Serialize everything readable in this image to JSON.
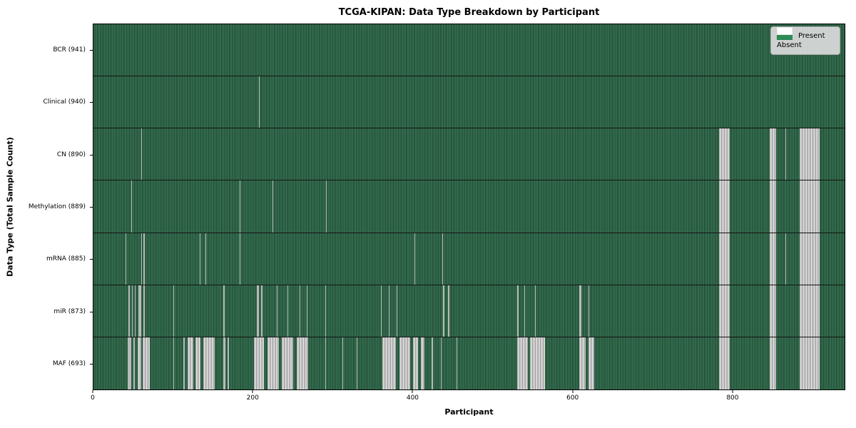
{
  "figure": {
    "title": "TCGA-KIPAN: Data Type Breakdown by Participant",
    "xlabel": "Participant",
    "ylabel": "Data Type (Total Sample Count)"
  },
  "legend": {
    "items": [
      {
        "label": "Present",
        "color": "#2e8b57"
      },
      {
        "label": "Absent",
        "color": "#ffffff"
      }
    ]
  },
  "chart_data": {
    "type": "heatmap",
    "title": "TCGA-KIPAN: Data Type Breakdown by Participant",
    "xlabel": "Participant",
    "ylabel": "Data Type (Total Sample Count)",
    "x_range": [
      0,
      941
    ],
    "x_ticks": [
      0,
      200,
      400,
      600,
      800
    ],
    "legend_position": "upper right",
    "colors": {
      "present": "#2e8b57",
      "present_stripe_dark": "#24513a",
      "absent": "#ffffff",
      "absent_rendered": "#b9b9b9",
      "row_divider": "#141414"
    },
    "rows": [
      {
        "label": "BCR (941)",
        "data_type": "BCR",
        "total_sample_count": 941,
        "absent_segments": []
      },
      {
        "label": "Clinical (940)",
        "data_type": "Clinical",
        "total_sample_count": 940,
        "absent_segments": [
          [
            207,
            208
          ]
        ]
      },
      {
        "label": "CN (890)",
        "data_type": "CN",
        "total_sample_count": 890,
        "absent_segments": [
          [
            60,
            61
          ],
          [
            784,
            797
          ],
          [
            847,
            855
          ],
          [
            867,
            868
          ],
          [
            885,
            910
          ]
        ]
      },
      {
        "label": "Methylation (889)",
        "data_type": "Methylation",
        "total_sample_count": 889,
        "absent_segments": [
          [
            47,
            48
          ],
          [
            183,
            184
          ],
          [
            224,
            225
          ],
          [
            291,
            292
          ],
          [
            784,
            797
          ],
          [
            847,
            855
          ],
          [
            885,
            910
          ]
        ]
      },
      {
        "label": "mRNA (885)",
        "data_type": "mRNA",
        "total_sample_count": 885,
        "absent_segments": [
          [
            40,
            41
          ],
          [
            60,
            61
          ],
          [
            63,
            64
          ],
          [
            133,
            134
          ],
          [
            140,
            141
          ],
          [
            183,
            184
          ],
          [
            402,
            403
          ],
          [
            437,
            438
          ],
          [
            784,
            797
          ],
          [
            847,
            855
          ],
          [
            867,
            868
          ],
          [
            885,
            910
          ]
        ]
      },
      {
        "label": "miR (873)",
        "data_type": "miR",
        "total_sample_count": 873,
        "absent_segments": [
          [
            44,
            46
          ],
          [
            48,
            49
          ],
          [
            52,
            53
          ],
          [
            56,
            60
          ],
          [
            63,
            64
          ],
          [
            100,
            101
          ],
          [
            163,
            164
          ],
          [
            205,
            207
          ],
          [
            210,
            212
          ],
          [
            230,
            231
          ],
          [
            243,
            244
          ],
          [
            258,
            259
          ],
          [
            267,
            268
          ],
          [
            290,
            291
          ],
          [
            360,
            361
          ],
          [
            370,
            371
          ],
          [
            380,
            381
          ],
          [
            438,
            440
          ],
          [
            444,
            446
          ],
          [
            531,
            533
          ],
          [
            540,
            541
          ],
          [
            553,
            554
          ],
          [
            609,
            611
          ],
          [
            620,
            621
          ],
          [
            784,
            797
          ],
          [
            847,
            855
          ],
          [
            885,
            910
          ]
        ]
      },
      {
        "label": "MAF (693)",
        "data_type": "MAF",
        "total_sample_count": 693,
        "absent_segments": [
          [
            43,
            47
          ],
          [
            50,
            52
          ],
          [
            55,
            60
          ],
          [
            62,
            71
          ],
          [
            100,
            101
          ],
          [
            113,
            114
          ],
          [
            118,
            125
          ],
          [
            128,
            134
          ],
          [
            138,
            152
          ],
          [
            163,
            165
          ],
          [
            168,
            170
          ],
          [
            201,
            214
          ],
          [
            218,
            232
          ],
          [
            236,
            250
          ],
          [
            255,
            269
          ],
          [
            290,
            291
          ],
          [
            312,
            313
          ],
          [
            330,
            331
          ],
          [
            362,
            379
          ],
          [
            383,
            397
          ],
          [
            400,
            407
          ],
          [
            410,
            415
          ],
          [
            424,
            425
          ],
          [
            435,
            436
          ],
          [
            455,
            456
          ],
          [
            531,
            544
          ],
          [
            547,
            566
          ],
          [
            609,
            617
          ],
          [
            620,
            627
          ],
          [
            784,
            797
          ],
          [
            847,
            855
          ],
          [
            885,
            910
          ]
        ]
      }
    ]
  }
}
